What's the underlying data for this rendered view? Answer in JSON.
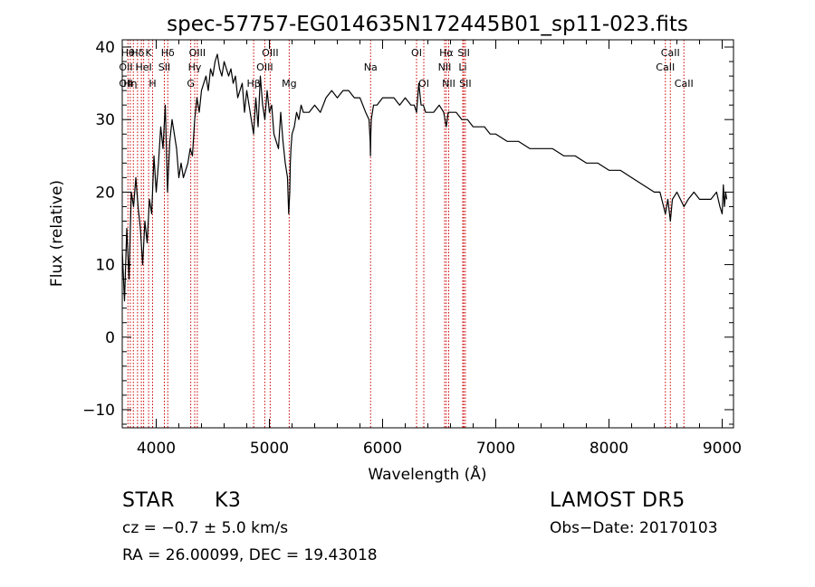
{
  "chart_data": {
    "type": "line",
    "title": "spec-57757-EG014635N172445B01_sp11-023.fits",
    "xlabel": "Wavelength (Å)",
    "ylabel": "Flux (relative)",
    "xlim": [
      3700,
      9100
    ],
    "ylim": [
      -12.5,
      41
    ],
    "xticks": [
      4000,
      5000,
      6000,
      7000,
      8000,
      9000
    ],
    "yticks": [
      -10,
      0,
      10,
      20,
      30,
      40
    ],
    "grid": false,
    "legend": "none",
    "series": [
      {
        "x": [
          3700,
          3720,
          3740,
          3760,
          3780,
          3800,
          3820,
          3840,
          3860,
          3880,
          3900,
          3920,
          3940,
          3960,
          3980,
          4000,
          4020,
          4040,
          4060,
          4080,
          4100,
          4120,
          4140,
          4160,
          4180,
          4200,
          4220,
          4240,
          4260,
          4280,
          4300,
          4320,
          4340,
          4360,
          4380,
          4400,
          4420,
          4440,
          4460,
          4480,
          4500,
          4520,
          4540,
          4560,
          4580,
          4600,
          4620,
          4640,
          4660,
          4680,
          4700,
          4720,
          4740,
          4760,
          4780,
          4800,
          4820,
          4840,
          4860,
          4880,
          4900,
          4920,
          4940,
          4960,
          4980,
          5000,
          5020,
          5040,
          5060,
          5080,
          5100,
          5120,
          5140,
          5160,
          5170,
          5180,
          5185,
          5190,
          5200,
          5220,
          5240,
          5260,
          5280,
          5300,
          5350,
          5400,
          5450,
          5500,
          5550,
          5600,
          5650,
          5700,
          5750,
          5800,
          5850,
          5880,
          5890,
          5893,
          5896,
          5900,
          5920,
          5950,
          6000,
          6050,
          6100,
          6150,
          6200,
          6250,
          6280,
          6300,
          6320,
          6340,
          6360,
          6380,
          6400,
          6450,
          6500,
          6540,
          6562,
          6580,
          6600,
          6650,
          6700,
          6750,
          6800,
          6850,
          6900,
          6950,
          7000,
          7100,
          7200,
          7300,
          7400,
          7500,
          7600,
          7700,
          7800,
          7900,
          8000,
          8100,
          8200,
          8300,
          8400,
          8450,
          8498,
          8520,
          8542,
          8560,
          8600,
          8662,
          8700,
          8750,
          8800,
          8850,
          8900,
          8950,
          8980,
          9000,
          9010,
          9020,
          9030,
          9040
        ],
        "values": [
          12,
          5,
          15,
          8,
          20,
          18,
          22,
          18,
          15,
          10,
          16,
          13,
          19,
          17,
          25,
          20,
          24,
          29,
          26,
          32,
          20,
          27,
          30,
          28,
          26,
          22,
          24,
          22,
          23,
          24,
          26,
          25,
          30,
          33,
          31,
          34,
          35,
          36,
          34,
          37,
          36,
          38,
          39,
          37,
          36,
          38,
          37,
          36,
          37,
          35,
          36,
          33,
          34,
          35,
          31,
          34,
          32,
          30,
          28,
          33,
          29,
          36,
          32,
          30,
          34,
          31,
          32,
          28,
          27,
          26,
          31,
          27,
          24,
          22,
          17,
          20,
          24,
          26,
          28,
          29,
          31,
          30,
          32,
          31,
          31,
          32,
          31,
          33,
          34,
          33,
          34,
          34,
          33,
          33,
          31,
          30,
          27,
          25,
          28,
          30,
          32,
          32,
          33,
          33,
          33,
          32,
          33,
          32,
          32,
          31,
          35,
          32,
          32,
          31,
          31,
          31,
          32,
          31,
          29,
          31,
          31,
          31,
          30,
          30,
          29,
          29,
          29,
          28,
          28,
          27,
          27,
          26,
          26,
          26,
          25,
          25,
          24,
          24,
          23,
          23,
          22,
          21,
          20,
          20,
          17,
          19,
          16,
          19,
          20,
          18,
          19,
          20,
          19,
          19,
          19,
          20,
          18,
          17,
          21,
          18,
          20,
          19
        ]
      }
    ],
    "line_annotations": [
      {
        "wl": 3750,
        "label": "Hθ",
        "row": 0
      },
      {
        "wl": 3771,
        "label": "Hη",
        "row": 2
      },
      {
        "wl": 3798,
        "label": "",
        "row": 0
      },
      {
        "wl": 3835,
        "label": "Hδ",
        "row": 0
      },
      {
        "wl": 3869,
        "label": "",
        "row": 0
      },
      {
        "wl": 3889,
        "label": "HeI",
        "row": 1
      },
      {
        "wl": 3933,
        "label": "K",
        "row": 0
      },
      {
        "wl": 3968,
        "label": "H",
        "row": 2
      },
      {
        "wl": 4072,
        "label": "SII",
        "row": 1
      },
      {
        "wl": 4102,
        "label": "Hδ",
        "row": 0
      },
      {
        "wl": 4305,
        "label": "G",
        "row": 2
      },
      {
        "wl": 4340,
        "label": "Hγ",
        "row": 1
      },
      {
        "wl": 4363,
        "label": "OIII",
        "row": 0
      },
      {
        "wl": 4861,
        "label": "Hβ",
        "row": 2
      },
      {
        "wl": 4959,
        "label": "OIII",
        "row": 1
      },
      {
        "wl": 5007,
        "label": "OIII",
        "row": 0
      },
      {
        "wl": 5175,
        "label": "Mg",
        "row": 2
      },
      {
        "wl": 5894,
        "label": "Na",
        "row": 1
      },
      {
        "wl": 6300,
        "label": "OI",
        "row": 0
      },
      {
        "wl": 6364,
        "label": "OI",
        "row": 2
      },
      {
        "wl": 6548,
        "label": "NII",
        "row": 1
      },
      {
        "wl": 6563,
        "label": "Hα",
        "row": 0
      },
      {
        "wl": 6584,
        "label": "NII",
        "row": 2
      },
      {
        "wl": 6708,
        "label": "Li",
        "row": 1
      },
      {
        "wl": 6717,
        "label": "SII",
        "row": 0
      },
      {
        "wl": 6731,
        "label": "SII",
        "row": 2
      },
      {
        "wl": 8498,
        "label": "CaII",
        "row": 1
      },
      {
        "wl": 8542,
        "label": "CaII",
        "row": 0
      },
      {
        "wl": 8662,
        "label": "CaII",
        "row": 2
      }
    ],
    "extra_labels": {
      "oii": "OII"
    }
  },
  "info": {
    "class": "STAR",
    "subclass": "K3",
    "survey": "LAMOST DR5",
    "cz_text": "cz = −0.7 ± 5.0 km/s",
    "obs_date": "Obs−Date: 20170103",
    "radec": "RA =  26.00099, DEC =  19.43018"
  }
}
